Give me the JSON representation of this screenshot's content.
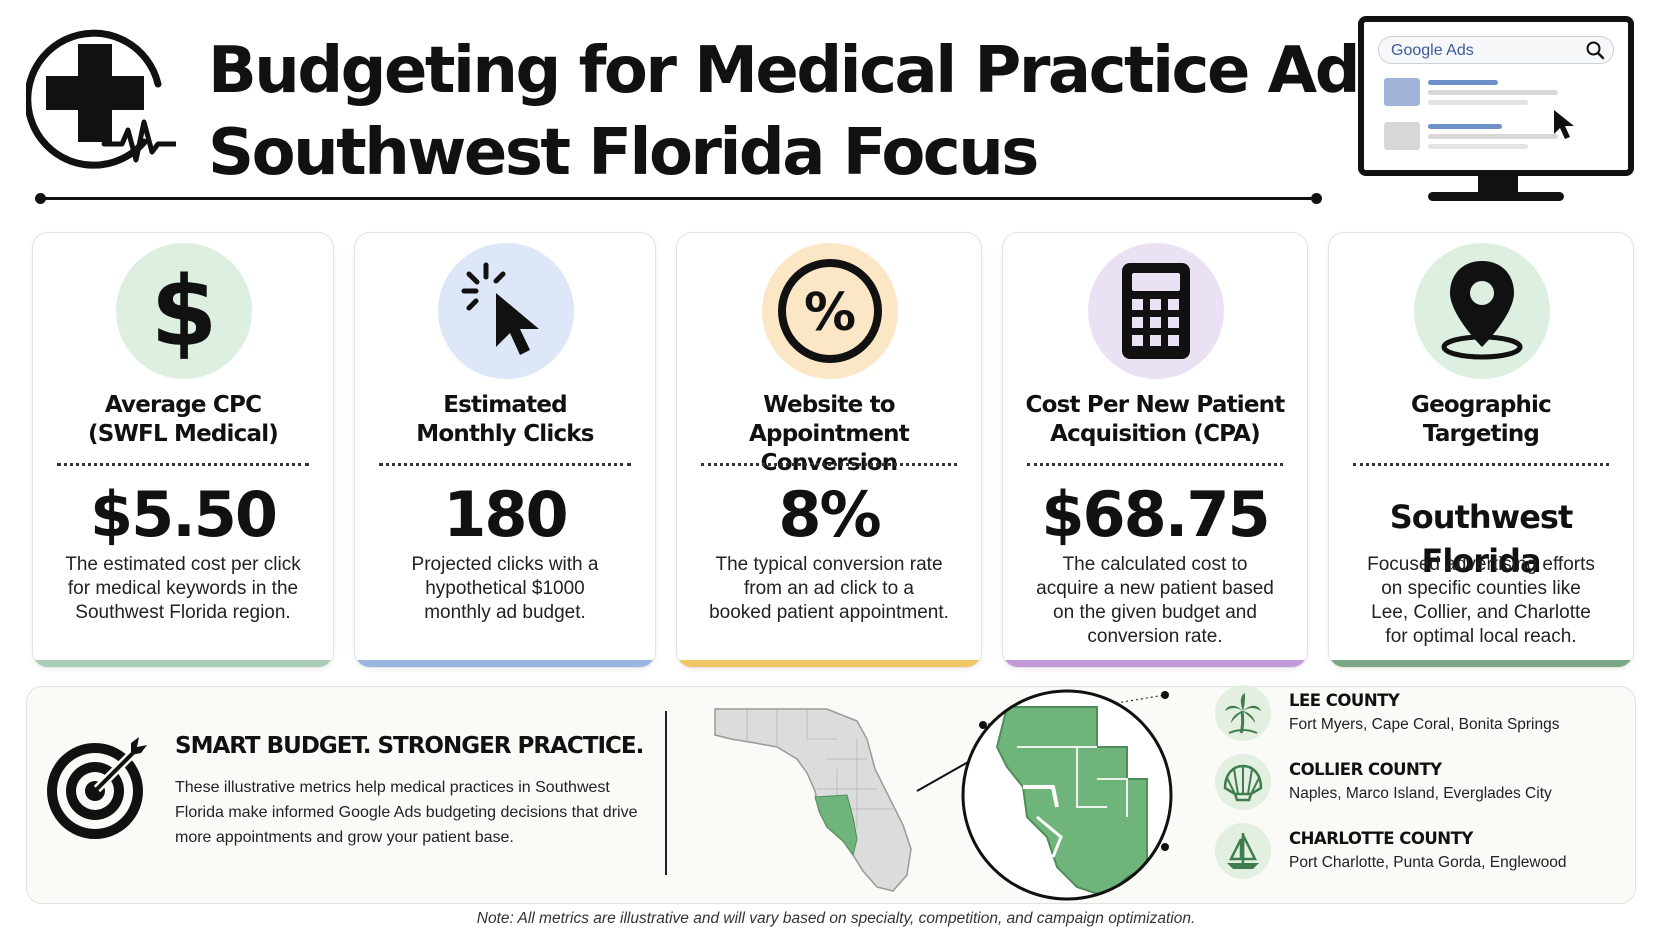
{
  "header": {
    "title_line1": "Budgeting for Medical Practice Ads:",
    "title_line2": "Southwest Florida Focus",
    "logo_icon": "medical-cross-heartbeat-icon",
    "monitor": {
      "search_label": "Google Ads"
    }
  },
  "cards": [
    {
      "icon": "dollar-icon",
      "title": "Average CPC\n(SWFL Medical)",
      "value": "$5.50",
      "description": "The estimated cost per click\nfor medical keywords in the\nSouthwest Florida region.",
      "circle_color": "#dcefe1",
      "accent_color": "#a8cdb7"
    },
    {
      "icon": "click-cursor-icon",
      "title": "Estimated\nMonthly Clicks",
      "value": "180",
      "description": "Projected clicks with a\nhypothetical $1000\nmonthly ad budget.",
      "circle_color": "#dde7f7",
      "accent_color": "#98b6e0"
    },
    {
      "icon": "percent-icon",
      "title": "Website to\nAppointment Conversion",
      "value": "8%",
      "description": "The typical conversion rate\nfrom an ad click to a\nbooked patient appointment.",
      "circle_color": "#fbe7c6",
      "accent_color": "#f2c564"
    },
    {
      "icon": "calculator-icon",
      "title": "Cost Per New Patient\nAcquisition (CPA)",
      "value": "$68.75",
      "description": "The calculated cost to\nacquire a new patient based\non the given budget and\nconversion rate.",
      "circle_color": "#ebe1f4",
      "accent_color": "#c39ad9"
    },
    {
      "icon": "map-pin-icon",
      "title": "Geographic\nTargeting",
      "value": "Southwest Florida",
      "description": "Focused advertising efforts\non specific counties like\nLee, Collier, and Charlotte\nfor optimal local reach.",
      "circle_color": "#dcefe1",
      "accent_color": "#7aa886"
    }
  ],
  "bottom": {
    "slogan": "SMART BUDGET. STRONGER PRACTICE.",
    "body": "These illustrative metrics help medical practices in Southwest Florida make informed Google Ads budgeting decisions that drive more appointments and grow your patient base.",
    "counties": [
      {
        "icon": "palm-tree-icon",
        "name": "LEE COUNTY",
        "cities": "Fort Myers, Cape Coral, Bonita Springs"
      },
      {
        "icon": "seashell-icon",
        "name": "COLLIER COUNTY",
        "cities": "Naples, Marco Island, Everglades City"
      },
      {
        "icon": "sailboat-icon",
        "name": "CHARLOTTE COUNTY",
        "cities": "Port Charlotte, Punta Gorda, Englewood"
      }
    ]
  },
  "note": "Note: All metrics are illustrative and will vary based on specialty, competition, and campaign optimization."
}
